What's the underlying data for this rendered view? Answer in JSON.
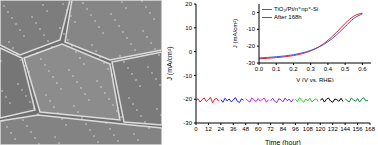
{
  "chart_data": [
    {
      "type": "line",
      "x_label": "Time (hour)",
      "y_label": "J (mA/cm²)",
      "xlim": [
        0,
        168
      ],
      "xticks": [
        0,
        12,
        24,
        36,
        48,
        60,
        72,
        84,
        96,
        108,
        120,
        132,
        144,
        156,
        168
      ],
      "ylim": [
        -30,
        20
      ],
      "yticks": [
        -30,
        -20,
        -10,
        0,
        10,
        20
      ],
      "grid": false,
      "series": [
        {
          "color": "#e8202a",
          "x": [
            0,
            2,
            4,
            6,
            8,
            10,
            12,
            14,
            16,
            18,
            20,
            22
          ],
          "values": [
            -20.5,
            -19.8,
            -21.2,
            -20.1,
            -19.5,
            -21.0,
            -20.3,
            -19.2,
            -21.5,
            -20.0,
            -19.7,
            -20.8
          ]
        },
        {
          "color": "#1a1aff",
          "x": [
            24,
            26,
            28,
            30,
            32,
            34,
            36,
            38,
            40,
            42,
            44,
            46
          ],
          "values": [
            -20.2,
            -21.3,
            -19.6,
            -20.7,
            -19.9,
            -21.1,
            -20.4,
            -19.3,
            -20.9,
            -21.4,
            -19.8,
            -20.5
          ]
        },
        {
          "color": "#e020e0",
          "x": [
            48,
            50,
            52,
            54,
            56,
            58,
            60,
            62,
            64,
            66,
            68,
            70
          ],
          "values": [
            -19.9,
            -20.6,
            -21.2,
            -19.4,
            -20.3,
            -21.0,
            -19.7,
            -20.8,
            -20.1,
            -19.5,
            -21.3,
            -20.2
          ]
        },
        {
          "color": "#8a2be2",
          "x": [
            72,
            74,
            76,
            78,
            80,
            82,
            84,
            86,
            88,
            90,
            92,
            94
          ],
          "values": [
            -20.7,
            -19.6,
            -20.9,
            -21.4,
            -19.8,
            -20.2,
            -21.1,
            -19.5,
            -20.6,
            -20.0,
            -21.2,
            -19.9
          ]
        },
        {
          "color": "#22cc22",
          "x": [
            96,
            98,
            100,
            102,
            104,
            106,
            108,
            110,
            112,
            114,
            116,
            118
          ],
          "values": [
            -20.1,
            -21.0,
            -19.4,
            -20.5,
            -21.3,
            -19.9,
            -20.7,
            -19.6,
            -21.1,
            -20.3,
            -19.8,
            -20.9
          ]
        },
        {
          "color": "#000000",
          "x": [
            120,
            122,
            124,
            126,
            128,
            130,
            132,
            134,
            136,
            138,
            140,
            142
          ],
          "values": [
            -20.4,
            -19.7,
            -21.2,
            -20.0,
            -19.5,
            -20.8,
            -21.3,
            -19.9,
            -20.2,
            -20.9,
            -19.6,
            -21.0
          ]
        },
        {
          "color": "#0a8a3a",
          "x": [
            144,
            146,
            148,
            150,
            152,
            154,
            156,
            158,
            160,
            162,
            164,
            166
          ],
          "values": [
            -19.8,
            -20.6,
            -21.1,
            -19.5,
            -20.3,
            -20.9,
            -19.7,
            -21.2,
            -20.0,
            -19.4,
            -20.7,
            -20.5
          ]
        }
      ]
    },
    {
      "type": "line",
      "x_label": "V (V vs. RHE)",
      "y_label": "J (mA/cm²)",
      "xlim": [
        0,
        0.65
      ],
      "xticks": [
        {
          "value": 0,
          "label": "0.0"
        },
        {
          "value": 0.1,
          "label": "0.1"
        },
        {
          "value": 0.2,
          "label": "0.2"
        },
        {
          "value": 0.3,
          "label": "0.3"
        },
        {
          "value": 0.4,
          "label": "0.4"
        },
        {
          "value": 0.5,
          "label": "0.5"
        },
        {
          "value": 0.6,
          "label": "0.6"
        }
      ],
      "ylim": [
        -30,
        5
      ],
      "yticks": [
        -30,
        -20,
        -10,
        0
      ],
      "grid": false,
      "legend": "upper left",
      "series": [
        {
          "name": "TiO₂/Pt/n⁺np⁺-Si",
          "color": "#e8202a",
          "x": [
            0,
            0.05,
            0.1,
            0.15,
            0.2,
            0.25,
            0.3,
            0.35,
            0.4,
            0.45,
            0.5,
            0.55,
            0.6
          ],
          "values": [
            -27.5,
            -27.2,
            -26.8,
            -26.3,
            -25.6,
            -24.5,
            -22.8,
            -20.3,
            -16.5,
            -11.8,
            -6.5,
            -2.2,
            -0.4
          ]
        },
        {
          "name": "After 168h",
          "color": "#3a5bd9",
          "x": [
            0,
            0.05,
            0.1,
            0.15,
            0.2,
            0.25,
            0.3,
            0.35,
            0.4,
            0.45,
            0.5,
            0.55,
            0.6
          ],
          "values": [
            -27.0,
            -26.7,
            -26.3,
            -25.8,
            -25.1,
            -24.0,
            -22.5,
            -20.4,
            -17.4,
            -13.3,
            -8.4,
            -3.6,
            -0.9
          ]
        }
      ]
    }
  ]
}
